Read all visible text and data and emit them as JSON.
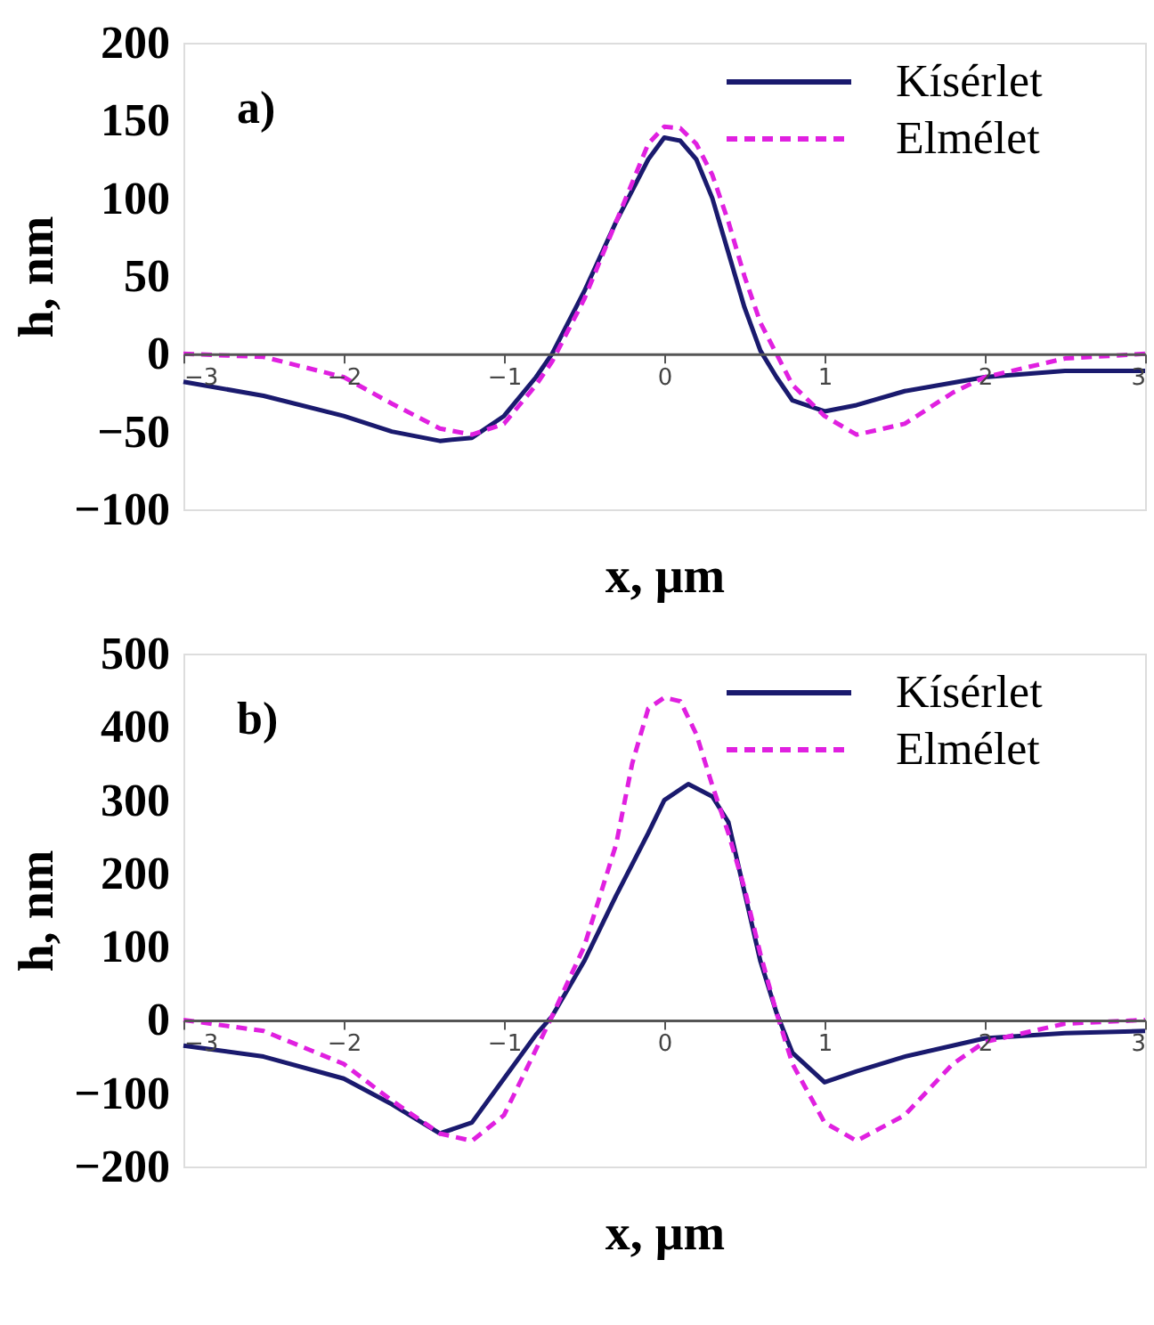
{
  "chart_data": [
    {
      "type": "line",
      "xlabel": "x, μm",
      "ylabel": "h, nm",
      "annotations": [
        "a)"
      ],
      "xlim": [
        -3,
        3
      ],
      "xticks": [
        -3,
        -2,
        -1,
        0,
        1,
        2,
        3
      ],
      "ylim": [
        -100,
        200
      ],
      "yticks": [
        -100,
        -50,
        0,
        50,
        100,
        150,
        200
      ],
      "grid": false,
      "legend": "top right",
      "series": [
        {
          "name": "Kísérlet",
          "color": "#1a1a6e",
          "line_style": "solid",
          "x": [
            -3,
            -2.5,
            -2,
            -1.7,
            -1.4,
            -1.2,
            -1,
            -0.8,
            -0.7,
            -0.5,
            -0.3,
            -0.1,
            0,
            0.1,
            0.2,
            0.3,
            0.4,
            0.5,
            0.6,
            0.7,
            0.8,
            1,
            1.2,
            1.5,
            2,
            2.5,
            3
          ],
          "values": [
            -18,
            -27,
            -40,
            -50,
            -56,
            -54,
            -40,
            -15,
            0,
            40,
            85,
            125,
            139,
            137,
            125,
            100,
            65,
            30,
            2,
            -15,
            -30,
            -37,
            -33,
            -24,
            -15,
            -11,
            -11
          ]
        },
        {
          "name": "Elmélet",
          "color": "#e020e0",
          "line_style": "dashed",
          "x": [
            -3,
            -2.5,
            -2,
            -1.7,
            -1.4,
            -1.2,
            -1,
            -0.8,
            -0.7,
            -0.5,
            -0.3,
            -0.1,
            0,
            0.1,
            0.2,
            0.3,
            0.4,
            0.5,
            0.6,
            0.7,
            0.8,
            1,
            1.2,
            1.5,
            1.8,
            2,
            2.5,
            3
          ],
          "values": [
            0,
            -2,
            -15,
            -32,
            -48,
            -52,
            -45,
            -20,
            -5,
            35,
            85,
            135,
            146,
            145,
            135,
            115,
            85,
            50,
            20,
            0,
            -20,
            -40,
            -52,
            -45,
            -25,
            -15,
            -3,
            0
          ]
        }
      ]
    },
    {
      "type": "line",
      "xlabel": "x, μm",
      "ylabel": "h, nm",
      "annotations": [
        "b)"
      ],
      "xlim": [
        -3,
        3
      ],
      "xticks": [
        -3,
        -2,
        -1,
        0,
        1,
        2,
        3
      ],
      "ylim": [
        -200,
        500
      ],
      "yticks": [
        -200,
        -100,
        0,
        100,
        200,
        300,
        400,
        500
      ],
      "grid": false,
      "legend": "top right",
      "series": [
        {
          "name": "Kísérlet",
          "color": "#1a1a6e",
          "line_style": "solid",
          "x": [
            -3,
            -2.5,
            -2,
            -1.7,
            -1.4,
            -1.2,
            -1,
            -0.8,
            -0.7,
            -0.5,
            -0.3,
            -0.1,
            0,
            0.15,
            0.3,
            0.4,
            0.5,
            0.6,
            0.7,
            0.8,
            1,
            1.2,
            1.5,
            2,
            2.5,
            3
          ],
          "values": [
            -35,
            -50,
            -80,
            -115,
            -155,
            -140,
            -80,
            -20,
            5,
            80,
            170,
            255,
            300,
            322,
            305,
            270,
            175,
            80,
            10,
            -45,
            -85,
            -70,
            -50,
            -25,
            -18,
            -15
          ]
        },
        {
          "name": "Elmélet",
          "color": "#e020e0",
          "line_style": "dashed",
          "x": [
            -3,
            -2.5,
            -2,
            -1.7,
            -1.4,
            -1.2,
            -1,
            -0.8,
            -0.7,
            -0.5,
            -0.3,
            -0.2,
            -0.1,
            0,
            0.1,
            0.2,
            0.3,
            0.4,
            0.5,
            0.6,
            0.7,
            0.8,
            1,
            1.2,
            1.5,
            1.8,
            2,
            2.5,
            3
          ],
          "values": [
            0,
            -15,
            -60,
            -110,
            -155,
            -165,
            -130,
            -40,
            5,
            100,
            240,
            350,
            425,
            440,
            435,
            390,
            320,
            255,
            180,
            90,
            10,
            -60,
            -140,
            -165,
            -130,
            -60,
            -30,
            -5,
            0
          ]
        }
      ]
    }
  ]
}
